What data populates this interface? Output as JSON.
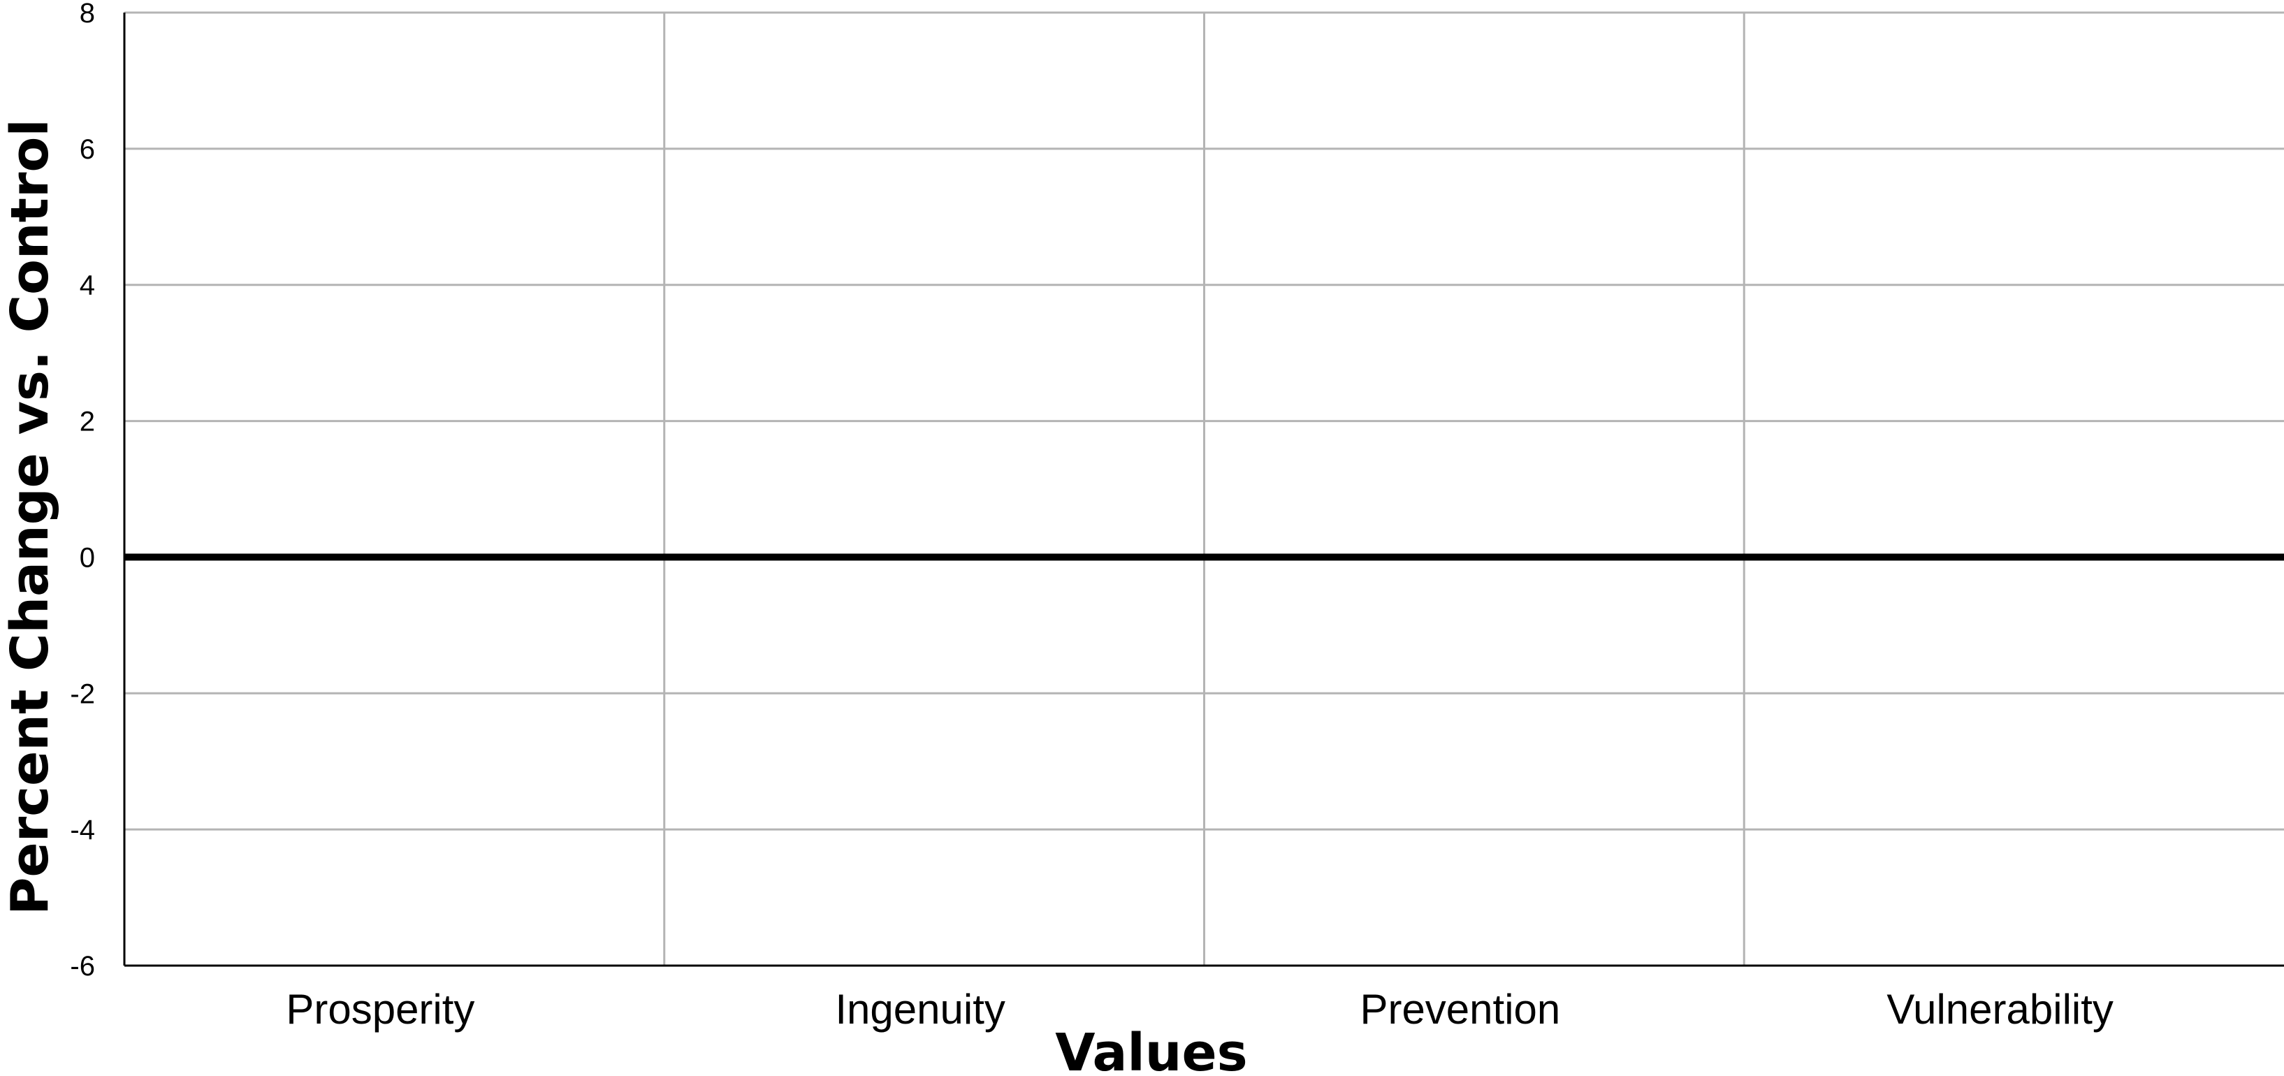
{
  "chart_data": {
    "type": "bar",
    "title": "",
    "xlabel": "Values",
    "ylabel": "Percent Change vs. Control",
    "categories": [
      "Prosperity",
      "Ingenuity",
      "Prevention",
      "Vulnerability"
    ],
    "series": [],
    "ylim": [
      -6,
      8
    ],
    "yticks": [
      8,
      6,
      4,
      2,
      0,
      -2,
      -4,
      -6
    ],
    "ytick_labels": [
      "8",
      "6",
      "4",
      "2",
      "0",
      "-2",
      "-4",
      "-6"
    ],
    "grid": true,
    "legend": "none",
    "zero_line": true,
    "colors": {
      "grid": "#b4b4b4",
      "axis": "#000000",
      "background": "#ffffff"
    }
  }
}
